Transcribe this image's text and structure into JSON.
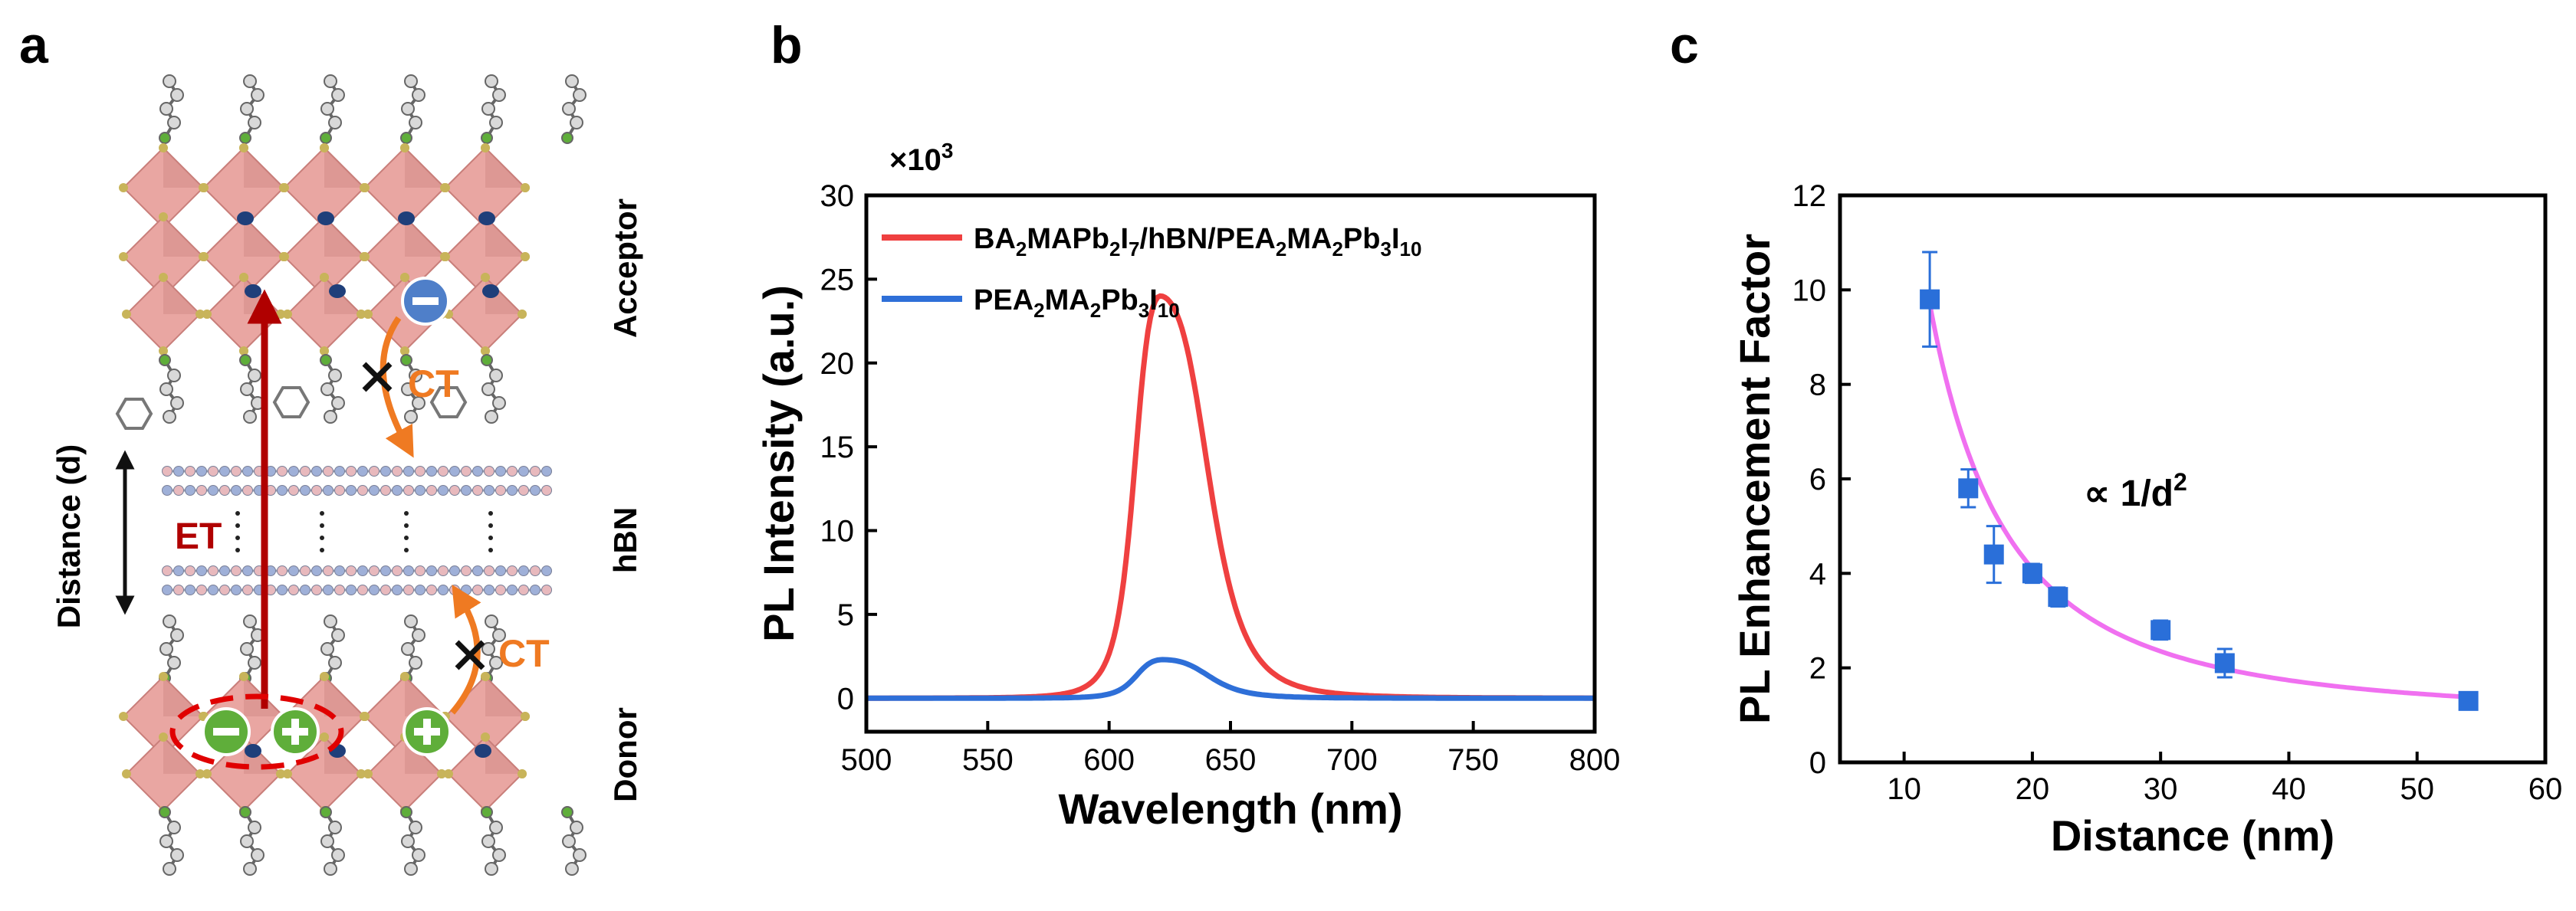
{
  "panels": {
    "a": {
      "label": "a",
      "labels": {
        "acceptor": "Acceptor",
        "hbn": "hBN",
        "donor": "Donor",
        "distance": "Distance (d)",
        "et": "ET",
        "ct_top": "CT",
        "ct_bottom": "CT"
      },
      "colors": {
        "octahedron": "#e9a6a2",
        "octahedron_dark": "#c97f7b",
        "cation": "#1f3f7a",
        "et_arrow": "#b00000",
        "ct_arrow": "#ef7a22",
        "electron": "#4f7fc9",
        "hole": "#5fae3a",
        "exciton_ring": "#e00000",
        "hbn_pink": "#e8b9bd",
        "hbn_blue": "#9fb0d8"
      }
    },
    "b": {
      "label": "b"
    },
    "c": {
      "label": "c"
    }
  },
  "chart_data": [
    {
      "id": "b",
      "type": "line",
      "title": "",
      "xlabel": "Wavelength (nm)",
      "ylabel": "PL Intensity (a.u.)",
      "multiplier_label": "×10",
      "multiplier_exponent": "3",
      "xlim": [
        500,
        800
      ],
      "ylim": [
        -2,
        30
      ],
      "xticks": [
        500,
        550,
        600,
        650,
        700,
        750,
        800
      ],
      "yticks": [
        0,
        5,
        10,
        15,
        20,
        25,
        30
      ],
      "legend_position": "top-left",
      "series": [
        {
          "name": "BA2MAPb2I7/hBN/PEA2MA2Pb3I10",
          "legend_parts": [
            [
              "BA",
              "n"
            ],
            [
              "2",
              "sub"
            ],
            [
              "MAPb",
              "n"
            ],
            [
              "2",
              "sub"
            ],
            [
              "I",
              "n"
            ],
            [
              "7",
              "sub"
            ],
            [
              "/hBN/PEA",
              "n"
            ],
            [
              "2",
              "sub"
            ],
            [
              "MA",
              "n"
            ],
            [
              "2",
              "sub"
            ],
            [
              "Pb",
              "n"
            ],
            [
              "3",
              "sub"
            ],
            [
              "I",
              "n"
            ],
            [
              "10",
              "sub"
            ]
          ],
          "color": "#ef4040",
          "peak_x": 621,
          "peak_y": 24.0,
          "hwhm_left": 11.5,
          "hwhm_right": 21.5,
          "shape": "lorentzian-asymmetric"
        },
        {
          "name": "PEA2MA2Pb3I10",
          "legend_parts": [
            [
              "PEA",
              "n"
            ],
            [
              "2",
              "sub"
            ],
            [
              "MA",
              "n"
            ],
            [
              "2",
              "sub"
            ],
            [
              "Pb",
              "n"
            ],
            [
              "3",
              "sub"
            ],
            [
              "I",
              "n"
            ],
            [
              "10",
              "sub"
            ]
          ],
          "color": "#2e6fd8",
          "peak_x": 622,
          "peak_y": 2.3,
          "hwhm_left": 12,
          "hwhm_right": 21,
          "shape": "lorentzian-asymmetric"
        }
      ]
    },
    {
      "id": "c",
      "type": "scatter",
      "title": "",
      "xlabel": "Distance (nm)",
      "ylabel": "PL Enhancement Factor",
      "xlim": [
        5,
        60
      ],
      "ylim": [
        0,
        12
      ],
      "xticks": [
        10,
        20,
        30,
        40,
        50,
        60
      ],
      "yticks": [
        0,
        2,
        4,
        6,
        8,
        10,
        12
      ],
      "annotation": "∝ 1/d",
      "annotation_exponent": "2",
      "points": {
        "x": [
          12,
          15,
          17,
          20,
          22,
          30,
          35,
          54
        ],
        "y": [
          9.8,
          5.8,
          4.4,
          4.0,
          3.5,
          2.8,
          2.1,
          1.3
        ],
        "err": [
          1.0,
          0.4,
          0.6,
          0.2,
          0.2,
          0.2,
          0.3,
          0.15
        ],
        "color": "#2a6fd9"
      },
      "fit": {
        "model": "A/d^2 + C",
        "A": 1260,
        "C": 0.95,
        "x_from": 12,
        "x_to": 54,
        "color": "#f070f0"
      }
    }
  ]
}
